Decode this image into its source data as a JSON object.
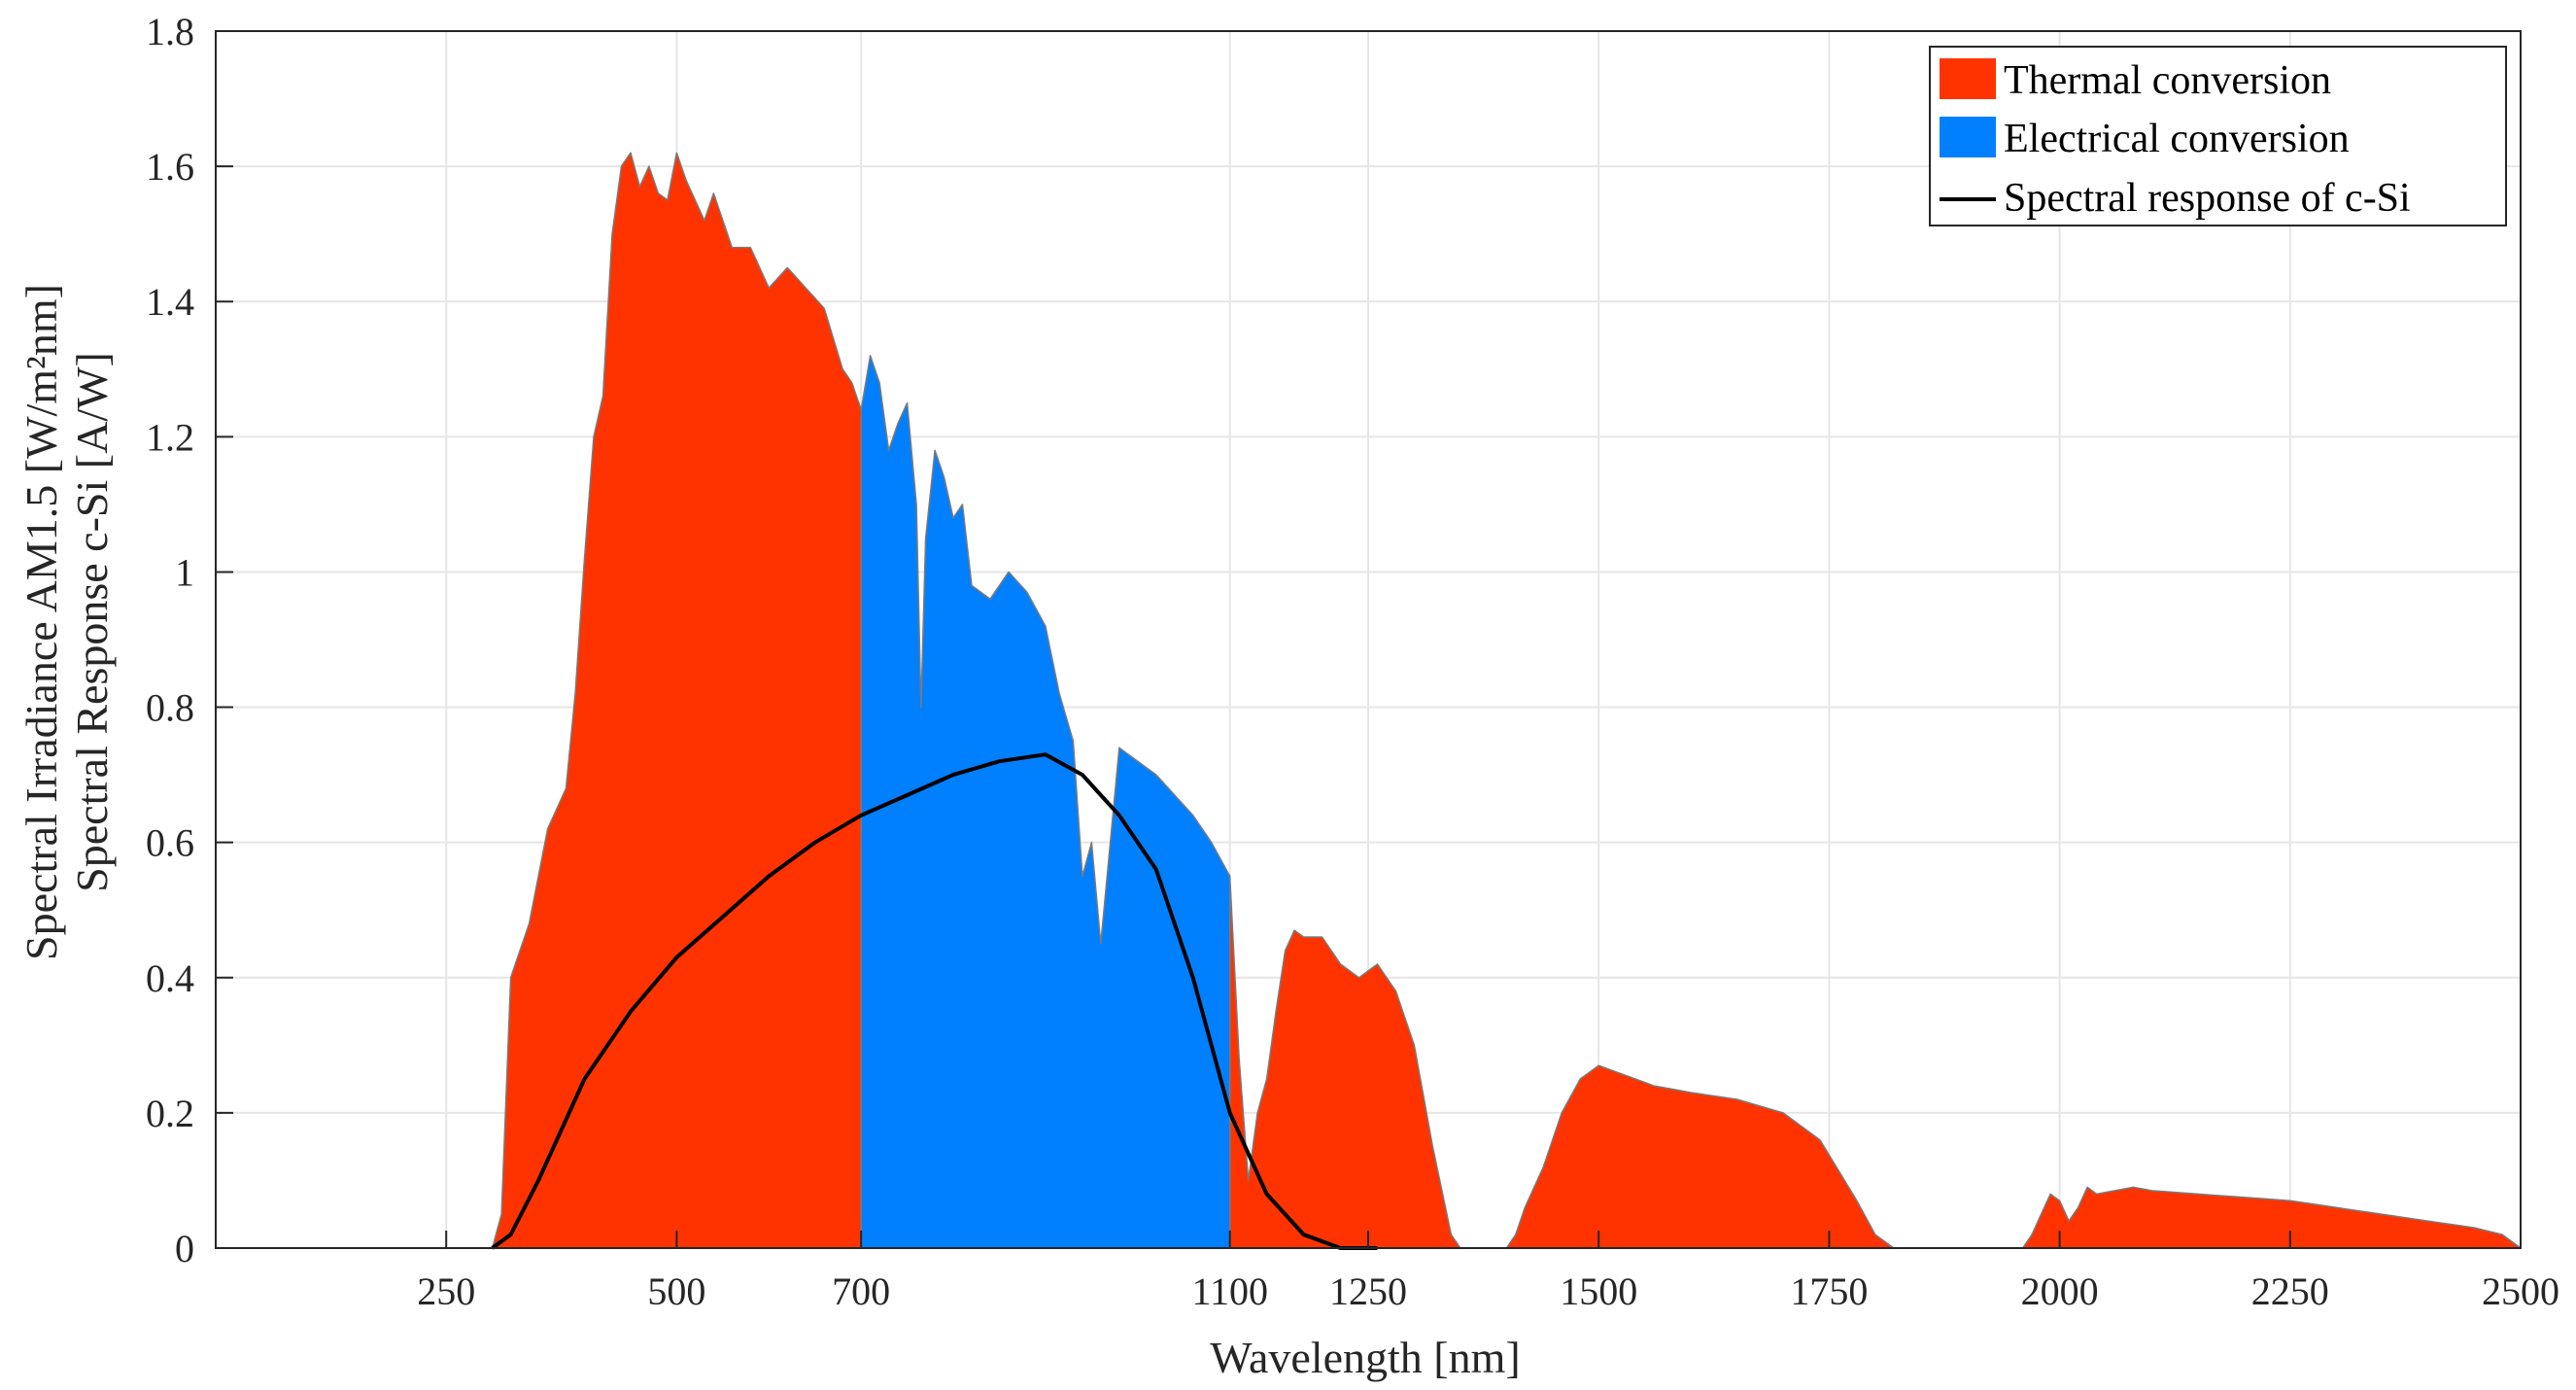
{
  "chart_data": {
    "type": "area",
    "title": "",
    "xlabel": "Wavelength [nm]",
    "ylabel_line1": "Spectral Irradiance AM1.5 [W/m²nm]",
    "ylabel_line2": "Spectral Response c-Si [A/W]",
    "xlim": [
      0,
      2500
    ],
    "ylim": [
      0,
      1.8
    ],
    "x_ticks": [
      250,
      500,
      700,
      1100,
      1250,
      1500,
      1750,
      2000,
      2250,
      2500
    ],
    "x_tick_labels": [
      "250",
      "500",
      "700",
      "1100",
      "1250",
      "1500",
      "1750",
      "2000",
      "2250",
      "2500"
    ],
    "y_ticks": [
      0,
      0.2,
      0.4,
      0.6,
      0.8,
      1.0,
      1.2,
      1.4,
      1.6,
      1.8
    ],
    "y_tick_labels": [
      "0",
      "0.2",
      "0.4",
      "0.6",
      "0.8",
      "1",
      "1.2",
      "1.4",
      "1.6",
      "1.8"
    ],
    "grid": true,
    "legend_position": "top-right",
    "series": [
      {
        "name": "Thermal conversion",
        "kind": "area",
        "color": "#ff3300",
        "range_nm": [
          [
            280,
            700
          ],
          [
            1100,
            2500
          ]
        ]
      },
      {
        "name": "Electrical conversion",
        "kind": "area",
        "color": "#0080ff",
        "range_nm": [
          [
            700,
            1100
          ]
        ]
      },
      {
        "name": "Spectral response of c-Si",
        "kind": "line",
        "color": "#000000"
      }
    ],
    "irradiance": {
      "x": [
        280,
        300,
        310,
        320,
        340,
        360,
        380,
        390,
        400,
        410,
        420,
        430,
        440,
        450,
        460,
        470,
        480,
        490,
        500,
        510,
        520,
        530,
        540,
        560,
        580,
        600,
        620,
        640,
        660,
        680,
        690,
        700,
        710,
        720,
        730,
        740,
        750,
        760,
        765,
        770,
        780,
        790,
        800,
        810,
        820,
        840,
        860,
        880,
        900,
        915,
        930,
        940,
        950,
        960,
        980,
        1000,
        1020,
        1040,
        1060,
        1080,
        1100,
        1110,
        1120,
        1130,
        1140,
        1150,
        1160,
        1170,
        1180,
        1200,
        1220,
        1240,
        1260,
        1280,
        1300,
        1320,
        1340,
        1350,
        1360,
        1380,
        1400,
        1410,
        1420,
        1440,
        1460,
        1480,
        1500,
        1520,
        1540,
        1560,
        1580,
        1600,
        1650,
        1700,
        1740,
        1780,
        1800,
        1820,
        1840,
        1960,
        1970,
        1980,
        1990,
        2000,
        2010,
        2020,
        2030,
        2040,
        2060,
        2080,
        2100,
        2150,
        2200,
        2250,
        2300,
        2350,
        2400,
        2450,
        2480,
        2500
      ],
      "y": [
        0,
        0,
        0.05,
        0.4,
        0.48,
        0.62,
        0.68,
        0.82,
        1.02,
        1.2,
        1.26,
        1.5,
        1.6,
        1.62,
        1.57,
        1.6,
        1.56,
        1.55,
        1.62,
        1.58,
        1.55,
        1.52,
        1.56,
        1.48,
        1.48,
        1.42,
        1.45,
        1.42,
        1.39,
        1.3,
        1.28,
        1.24,
        1.32,
        1.28,
        1.18,
        1.22,
        1.25,
        1.1,
        0.8,
        1.05,
        1.18,
        1.14,
        1.08,
        1.1,
        0.98,
        0.96,
        1.0,
        0.97,
        0.92,
        0.82,
        0.75,
        0.55,
        0.6,
        0.45,
        0.74,
        0.72,
        0.7,
        0.67,
        0.64,
        0.6,
        0.55,
        0.28,
        0.1,
        0.2,
        0.25,
        0.35,
        0.44,
        0.47,
        0.46,
        0.46,
        0.42,
        0.4,
        0.42,
        0.38,
        0.3,
        0.15,
        0.02,
        0,
        0,
        0,
        0,
        0.02,
        0.06,
        0.12,
        0.2,
        0.25,
        0.27,
        0.26,
        0.25,
        0.24,
        0.235,
        0.23,
        0.22,
        0.2,
        0.16,
        0.07,
        0.02,
        0,
        0,
        0,
        0.02,
        0.05,
        0.08,
        0.07,
        0.04,
        0.06,
        0.09,
        0.08,
        0.085,
        0.09,
        0.085,
        0.08,
        0.075,
        0.07,
        0.06,
        0.05,
        0.04,
        0.03,
        0.02,
        0
      ]
    },
    "spectral_response": {
      "x": [
        300,
        320,
        350,
        400,
        450,
        500,
        550,
        600,
        650,
        700,
        750,
        800,
        850,
        900,
        940,
        980,
        1020,
        1060,
        1100,
        1140,
        1180,
        1220,
        1260
      ],
      "y": [
        0,
        0.02,
        0.1,
        0.25,
        0.35,
        0.43,
        0.49,
        0.55,
        0.6,
        0.64,
        0.67,
        0.7,
        0.72,
        0.73,
        0.7,
        0.64,
        0.56,
        0.4,
        0.2,
        0.08,
        0.02,
        0,
        0
      ]
    }
  }
}
